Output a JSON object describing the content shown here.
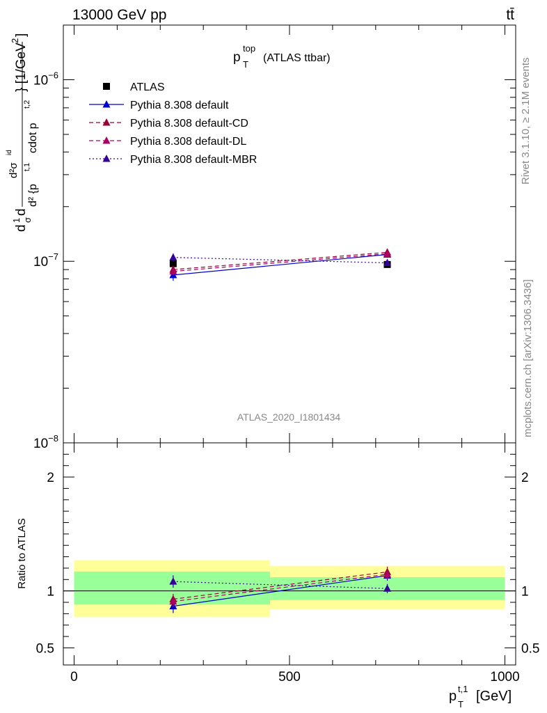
{
  "header": {
    "left": "13000 GeV pp",
    "right": "tt̄"
  },
  "side": {
    "rivet": "Rivet 3.1.10, ≥ 2.1M events",
    "mcplots": "mcplots.cern.ch [arXiv:1306.3436]"
  },
  "analysis_id": "ATLAS_2020_I1801434",
  "title": {
    "main": "p",
    "sup": "top",
    "sub": "T",
    "rest": "(ATLAS ttbar)"
  },
  "ylabel": "d<sup>2</sup>σ/d<sup>2</sup>{p<sub>T</sub><sup>t,1</sup> cdot p<sub>T</sub><sup>t,2</sup>} · 1/σ [1/GeV<sup>2</sup>]",
  "ylabel_parts": {
    "prefix": "d",
    "one": "1",
    "sigma": "σ",
    "d2sigma": "d²σ",
    "id": "id",
    "denom": "d² {p",
    "t1": "t,1",
    "cdot": "cdot p",
    "t2": "t,2",
    "unit": "} [1/GeV",
    "sq": "2",
    "close": "]"
  },
  "ratio_label": "Ratio to ATLAS",
  "xaxis": {
    "label_main": "p",
    "label_sup": "t,1",
    "label_sub": "T",
    "label_unit": "[GeV]"
  },
  "chart_data": {
    "type": "line",
    "title": "p_T^top (ATLAS ttbar)",
    "xlabel": "p_T^{t,1} [GeV]",
    "ylabel": "d2sigma / d2{p_T^{t,1} cdot p_T^{t,2}} [1/GeV^2]",
    "xlim": [
      -25,
      1025
    ],
    "ylim": [
      1e-08,
      2e-06
    ],
    "yscale": "log",
    "ratio_ylim": [
      0.35,
      2.3
    ],
    "xticks": [
      0,
      500,
      1000
    ],
    "yticks_major": [
      {
        "v": 1e-08,
        "label": "10",
        "exp": "−8"
      },
      {
        "v": 1e-07,
        "label": "10",
        "exp": "−7"
      },
      {
        "v": 1e-06,
        "label": "10",
        "exp": "−6"
      }
    ],
    "ratio_ticks": [
      {
        "v": 0.5,
        "label": "0.5"
      },
      {
        "v": 1,
        "label": "1"
      },
      {
        "v": 2,
        "label": "2"
      }
    ],
    "x": [
      230,
      727
    ],
    "bins": [
      [
        0,
        455
      ],
      [
        455,
        1000
      ]
    ],
    "data": {
      "name": "ATLAS",
      "values": [
        9.7e-08,
        9.6e-08
      ],
      "band_inner": [
        [
          0.88,
          1.17
        ],
        [
          0.92,
          1.12
        ]
      ],
      "band_outer": [
        [
          0.77,
          1.27
        ],
        [
          0.84,
          1.22
        ]
      ]
    },
    "series": [
      {
        "name": "Pythia 8.308 default",
        "color": "#0000cc",
        "dash": "",
        "values": [
          8.4e-08,
          1.09e-07
        ],
        "err": [
          0.07,
          0.04
        ]
      },
      {
        "name": "Pythia 8.308 default-CD",
        "color": "#990033",
        "dash": "6,4",
        "values": [
          9e-08,
          1.12e-07
        ],
        "err": [
          0.05,
          0.04
        ]
      },
      {
        "name": "Pythia 8.308 default-DL",
        "color": "#aa0066",
        "dash": "6,4",
        "values": [
          8.8e-08,
          1.1e-07
        ],
        "err": [
          0.05,
          0.04
        ]
      },
      {
        "name": "Pythia 8.308 default-MBR",
        "color": "#330099",
        "dash": "2,3",
        "values": [
          1.05e-07,
          9.8e-08
        ],
        "err": [
          0.05,
          0.04
        ]
      }
    ]
  }
}
